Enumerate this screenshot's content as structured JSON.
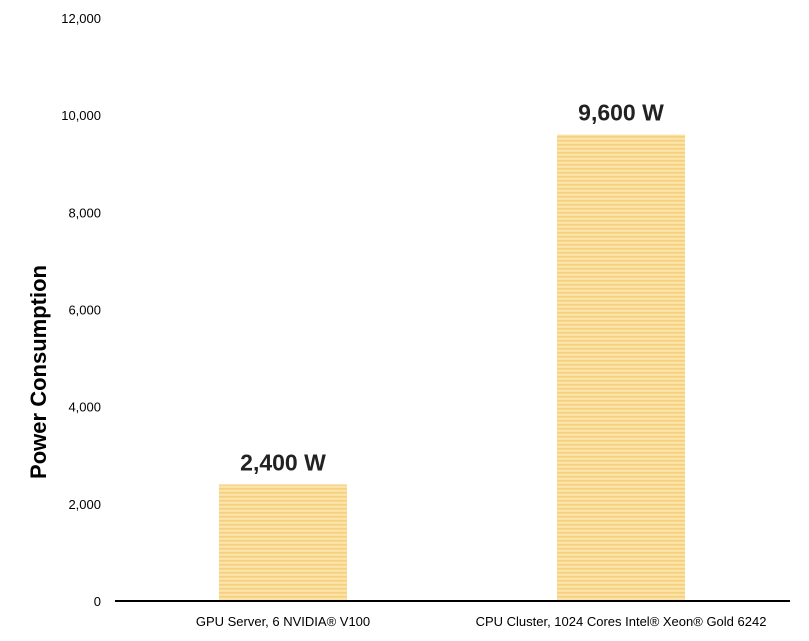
{
  "chart_data": {
    "type": "bar",
    "categories": [
      "GPU Server, 6 NVIDIA® V100",
      "CPU Cluster, 1024 Cores Intel® Xeon® Gold 6242"
    ],
    "values": [
      2400,
      9600
    ],
    "data_labels": [
      "2,400 W",
      "9,600 W"
    ],
    "title": "",
    "xlabel": "",
    "ylabel": "Power Consumption",
    "ylim": [
      0,
      12000
    ],
    "yticks": [
      0,
      2000,
      4000,
      6000,
      8000,
      10000,
      12000
    ],
    "ytick_labels": [
      "0",
      "2,000",
      "4,000",
      "6,000",
      "8,000",
      "10,000",
      "12,000"
    ],
    "grid": false,
    "legend": "none",
    "colors": {
      "bar_fill": "#fbe3a8",
      "bar_stripe": "#f6cf7e",
      "axis": "#000000"
    }
  }
}
